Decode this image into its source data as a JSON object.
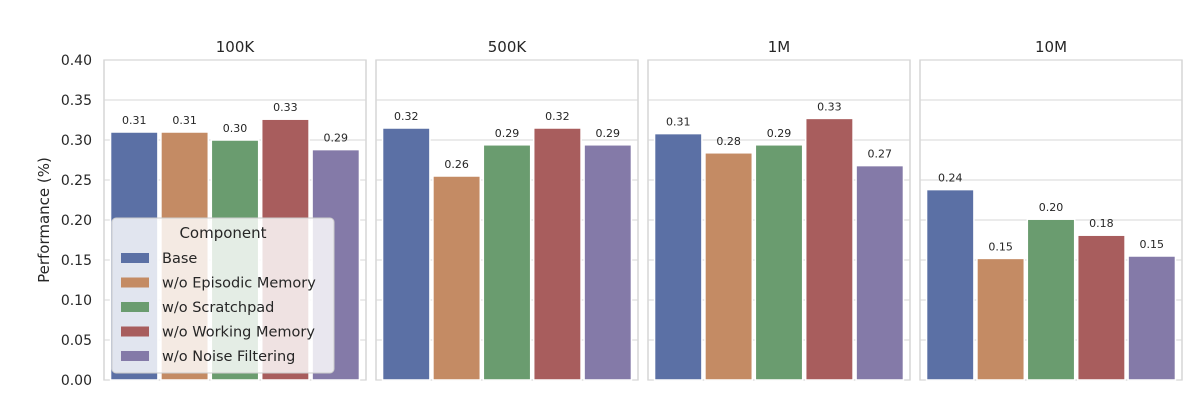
{
  "chart_data": {
    "type": "bar",
    "ylabel": "Performance (%)",
    "ylim": [
      0,
      0.4
    ],
    "yticks": [
      "0.00",
      "0.05",
      "0.10",
      "0.15",
      "0.20",
      "0.25",
      "0.30",
      "0.35",
      "0.40"
    ],
    "grid": true,
    "legend": {
      "title": "Component",
      "placement": "lower-left of first panel",
      "entries": [
        "Base",
        "w/o Episodic Memory",
        "w/o Scratchpad",
        "w/o Working Memory",
        "w/o Noise Filtering"
      ]
    },
    "series_colors": [
      "#5b70a5",
      "#c48b64",
      "#6a9c6f",
      "#a85d5d",
      "#847aa8"
    ],
    "panels": [
      {
        "title": "100K",
        "values": [
          0.31,
          0.31,
          0.3,
          0.326,
          0.288
        ],
        "labels": [
          "0.31",
          "0.31",
          "0.30",
          "0.33",
          "0.29"
        ]
      },
      {
        "title": "500K",
        "values": [
          0.315,
          0.255,
          0.294,
          0.315,
          0.294
        ],
        "labels": [
          "0.32",
          "0.26",
          "0.29",
          "0.32",
          "0.29"
        ]
      },
      {
        "title": "1M",
        "values": [
          0.308,
          0.284,
          0.294,
          0.327,
          0.268
        ],
        "labels": [
          "0.31",
          "0.28",
          "0.29",
          "0.33",
          "0.27"
        ]
      },
      {
        "title": "10M",
        "values": [
          0.238,
          0.152,
          0.201,
          0.181,
          0.155
        ],
        "labels": [
          "0.24",
          "0.15",
          "0.20",
          "0.18",
          "0.15"
        ]
      }
    ]
  }
}
